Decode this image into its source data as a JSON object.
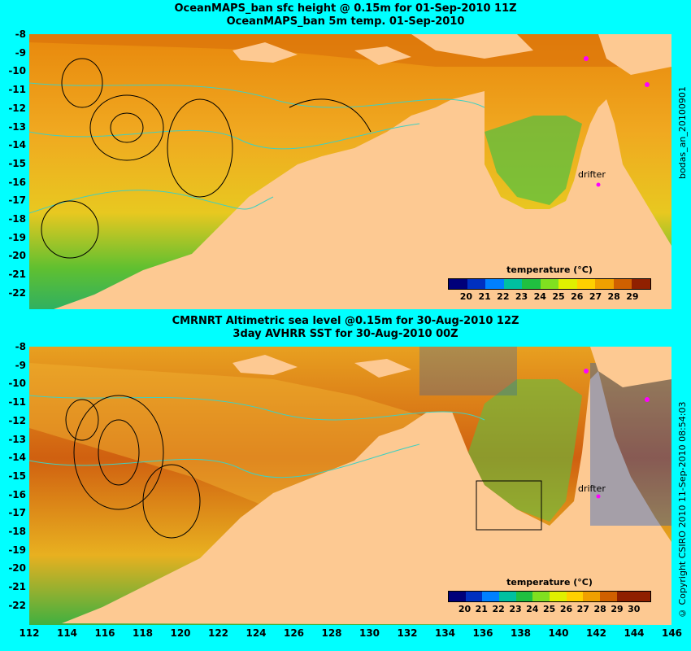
{
  "panel_top": {
    "title_line1": "OceanMAPS_ban sfc height @ 0.15m for 01-Sep-2010 11Z",
    "title_line2": "OceanMAPS_ban 5m temp. 01-Sep-2010",
    "y_ticks": [
      "-8",
      "-9",
      "-10",
      "-11",
      "-12",
      "-13",
      "-14",
      "-15",
      "-16",
      "-17",
      "-18",
      "-19",
      "-20",
      "-21",
      "-22"
    ],
    "legend_title": "temperature (°C)",
    "colorbar_ticks": [
      "20",
      "21",
      "22",
      "23",
      "24",
      "25",
      "26",
      "27",
      "28",
      "29"
    ],
    "drifter_label": "drifter",
    "side_text": "bodas_an_20100901"
  },
  "panel_bottom": {
    "title_line1": "CMRNRT Altimetric sea level  @0.15m  for 30-Aug-2010 12Z",
    "title_line2": "3day AVHRR SST for 30-Aug-2010 00Z",
    "y_ticks": [
      "-8",
      "-9",
      "-10",
      "-11",
      "-12",
      "-13",
      "-14",
      "-15",
      "-16",
      "-17",
      "-18",
      "-19",
      "-20",
      "-21",
      "-22"
    ],
    "legend_title": "temperature (°C)",
    "colorbar_ticks": [
      "20",
      "21",
      "22",
      "23",
      "24",
      "25",
      "26",
      "27",
      "28",
      "29",
      "30"
    ],
    "drifter_label": "drifter",
    "side_text": "© Copyright CSIRO 2010    11-Sep-2010 08:54:03"
  },
  "x_ticks": [
    "112",
    "114",
    "116",
    "118",
    "120",
    "122",
    "124",
    "126",
    "128",
    "130",
    "132",
    "134",
    "136",
    "138",
    "140",
    "142",
    "144",
    "146"
  ],
  "colors": {
    "background": "#00ffff",
    "land": "#fdc992",
    "ocean_warm": "#f0a020",
    "contour_sea_level": "#000000",
    "contour_bathymetry": "#40d0c0",
    "drifter": "#ff00ff"
  },
  "colorbar_colors": [
    "#00007a",
    "#0030c0",
    "#0080ff",
    "#00c0a0",
    "#20c040",
    "#80e020",
    "#e0f000",
    "#ffd000",
    "#f0a000",
    "#d06000",
    "#902000"
  ]
}
